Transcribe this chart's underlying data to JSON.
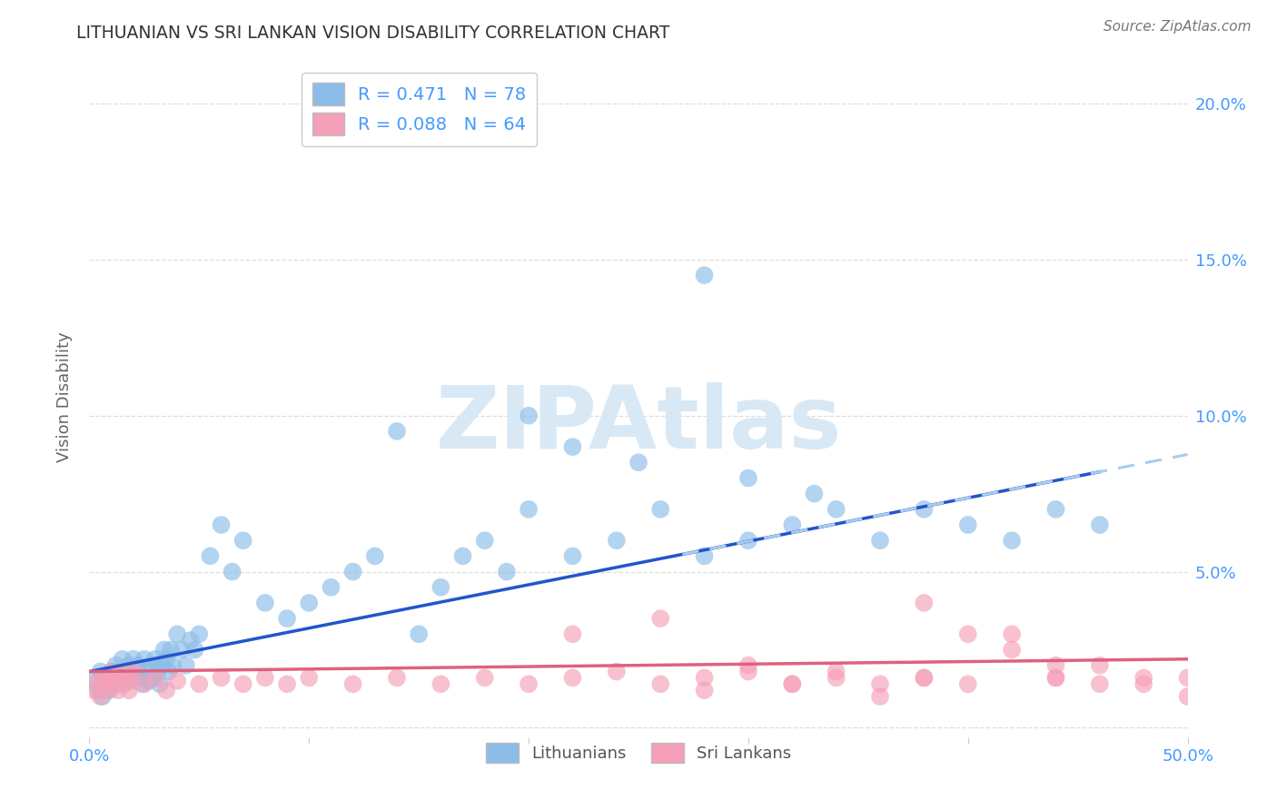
{
  "title": "LITHUANIAN VS SRI LANKAN VISION DISABILITY CORRELATION CHART",
  "source": "Source: ZipAtlas.com",
  "ylabel": "Vision Disability",
  "xlim": [
    0.0,
    0.5
  ],
  "ylim": [
    -0.003,
    0.215
  ],
  "yticks": [
    0.0,
    0.05,
    0.1,
    0.15,
    0.2
  ],
  "ytick_labels_right": [
    "",
    "5.0%",
    "10.0%",
    "15.0%",
    "20.0%"
  ],
  "xticks": [
    0.0,
    0.1,
    0.2,
    0.3,
    0.4,
    0.5
  ],
  "xtick_labels": [
    "0.0%",
    "",
    "",
    "",
    "",
    "50.0%"
  ],
  "blue_R": 0.471,
  "blue_N": 78,
  "pink_R": 0.088,
  "pink_N": 64,
  "blue_color": "#8BBDE8",
  "pink_color": "#F5A0B8",
  "blue_line_color": "#2255CC",
  "pink_line_color": "#E06080",
  "dashed_line_color": "#AACCEE",
  "watermark_text": "ZIPAtlas",
  "watermark_color": "#D8E8F5",
  "blue_scatter_x": [
    0.002,
    0.004,
    0.005,
    0.006,
    0.007,
    0.008,
    0.009,
    0.01,
    0.011,
    0.012,
    0.013,
    0.014,
    0.015,
    0.016,
    0.017,
    0.018,
    0.019,
    0.02,
    0.021,
    0.022,
    0.023,
    0.024,
    0.025,
    0.026,
    0.027,
    0.028,
    0.029,
    0.03,
    0.031,
    0.032,
    0.033,
    0.034,
    0.035,
    0.036,
    0.037,
    0.038,
    0.04,
    0.042,
    0.044,
    0.046,
    0.048,
    0.05,
    0.055,
    0.06,
    0.065,
    0.07,
    0.08,
    0.09,
    0.1,
    0.11,
    0.12,
    0.13,
    0.14,
    0.15,
    0.16,
    0.17,
    0.18,
    0.19,
    0.2,
    0.22,
    0.24,
    0.26,
    0.28,
    0.3,
    0.32,
    0.34,
    0.36,
    0.38,
    0.4,
    0.42,
    0.44,
    0.46,
    0.2,
    0.22,
    0.25,
    0.28,
    0.3,
    0.33
  ],
  "blue_scatter_y": [
    0.015,
    0.012,
    0.018,
    0.01,
    0.014,
    0.016,
    0.012,
    0.018,
    0.015,
    0.02,
    0.014,
    0.016,
    0.022,
    0.018,
    0.015,
    0.02,
    0.016,
    0.022,
    0.018,
    0.02,
    0.016,
    0.014,
    0.022,
    0.018,
    0.015,
    0.02,
    0.016,
    0.022,
    0.018,
    0.014,
    0.02,
    0.025,
    0.022,
    0.018,
    0.025,
    0.02,
    0.03,
    0.025,
    0.02,
    0.028,
    0.025,
    0.03,
    0.055,
    0.065,
    0.05,
    0.06,
    0.04,
    0.035,
    0.04,
    0.045,
    0.05,
    0.055,
    0.095,
    0.03,
    0.045,
    0.055,
    0.06,
    0.05,
    0.07,
    0.055,
    0.06,
    0.07,
    0.055,
    0.06,
    0.065,
    0.07,
    0.06,
    0.07,
    0.065,
    0.06,
    0.07,
    0.065,
    0.1,
    0.09,
    0.085,
    0.145,
    0.08,
    0.075
  ],
  "pink_scatter_x": [
    0.002,
    0.004,
    0.005,
    0.006,
    0.007,
    0.008,
    0.009,
    0.01,
    0.011,
    0.012,
    0.013,
    0.014,
    0.015,
    0.016,
    0.017,
    0.018,
    0.019,
    0.02,
    0.025,
    0.03,
    0.035,
    0.04,
    0.05,
    0.06,
    0.07,
    0.08,
    0.09,
    0.1,
    0.12,
    0.14,
    0.16,
    0.18,
    0.2,
    0.22,
    0.24,
    0.26,
    0.28,
    0.3,
    0.32,
    0.34,
    0.36,
    0.38,
    0.4,
    0.42,
    0.44,
    0.46,
    0.48,
    0.5,
    0.22,
    0.26,
    0.3,
    0.34,
    0.38,
    0.42,
    0.46,
    0.5,
    0.28,
    0.32,
    0.36,
    0.4,
    0.44,
    0.48,
    0.38,
    0.44
  ],
  "pink_scatter_y": [
    0.012,
    0.015,
    0.01,
    0.014,
    0.016,
    0.012,
    0.015,
    0.018,
    0.014,
    0.016,
    0.012,
    0.015,
    0.018,
    0.014,
    0.016,
    0.012,
    0.015,
    0.018,
    0.014,
    0.016,
    0.012,
    0.015,
    0.014,
    0.016,
    0.014,
    0.016,
    0.014,
    0.016,
    0.014,
    0.016,
    0.014,
    0.016,
    0.014,
    0.016,
    0.018,
    0.014,
    0.016,
    0.018,
    0.014,
    0.016,
    0.014,
    0.016,
    0.014,
    0.03,
    0.016,
    0.014,
    0.016,
    0.016,
    0.03,
    0.035,
    0.02,
    0.018,
    0.016,
    0.025,
    0.02,
    0.01,
    0.012,
    0.014,
    0.01,
    0.03,
    0.016,
    0.014,
    0.04,
    0.02
  ],
  "background_color": "#FFFFFF",
  "grid_color": "#DDDDDD",
  "tick_color": "#4499FF",
  "title_color": "#333333",
  "source_color": "#777777",
  "ylabel_color": "#666666"
}
